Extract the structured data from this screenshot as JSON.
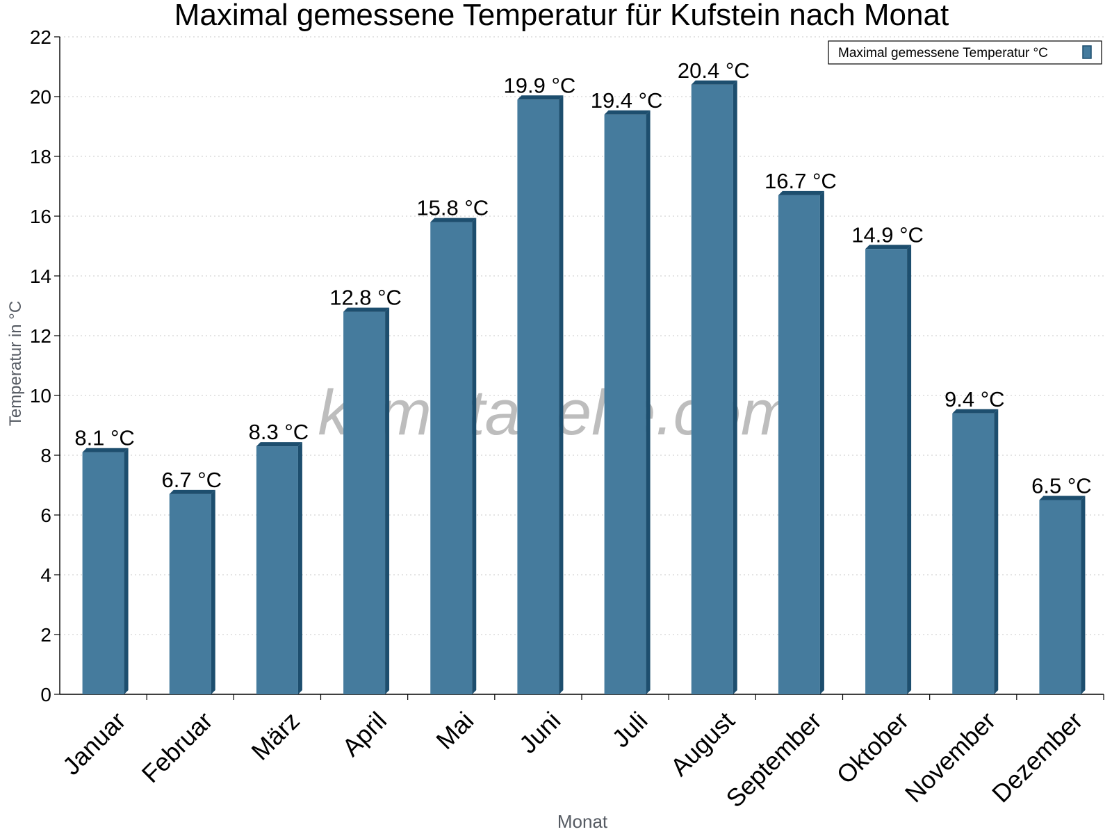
{
  "chart_data": {
    "type": "bar",
    "title": "Maximal gemessene Temperatur für Kufstein nach Monat",
    "xlabel": "Monat",
    "ylabel": "Temperatur in °C",
    "ylim": [
      0,
      22
    ],
    "yticks": [
      0,
      2,
      4,
      6,
      8,
      10,
      12,
      14,
      16,
      18,
      20,
      22
    ],
    "grid": true,
    "legend_position": "top-right",
    "categories": [
      "Januar",
      "Februar",
      "März",
      "April",
      "Mai",
      "Juni",
      "Juli",
      "August",
      "September",
      "Oktober",
      "November",
      "Dezember"
    ],
    "series": [
      {
        "name": "Maximal gemessene Temperatur °C",
        "values": [
          8.1,
          6.7,
          8.3,
          12.8,
          15.8,
          19.9,
          19.4,
          20.4,
          16.7,
          14.9,
          9.4,
          6.5
        ],
        "labels": [
          "8.1 °C",
          "6.7 °C",
          "8.3 °C",
          "12.8 °C",
          "15.8 °C",
          "19.9 °C",
          "19.4 °C",
          "20.4 °C",
          "16.7 °C",
          "14.9 °C",
          "9.4 °C",
          "6.5 °C"
        ],
        "color": "#457b9d",
        "edge_color": "#1d4e6e"
      }
    ],
    "watermark": "klimatabelle.com"
  }
}
